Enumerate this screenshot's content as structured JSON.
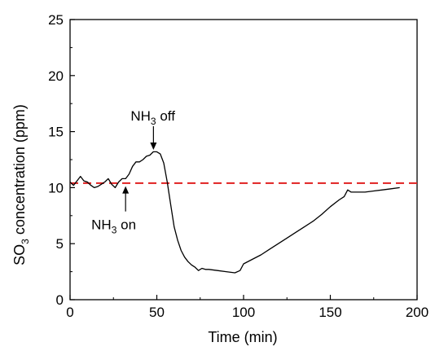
{
  "chart_data": {
    "type": "line",
    "xlabel": "Time (min)",
    "ylabel_parts": [
      "SO",
      "3",
      " concentration (ppm)"
    ],
    "xlim": [
      0,
      200
    ],
    "ylim": [
      0,
      25
    ],
    "x_ticks": [
      0,
      50,
      100,
      150,
      200
    ],
    "y_ticks": [
      0,
      5,
      10,
      15,
      20,
      25
    ],
    "grid": false,
    "colors": {
      "series": "#000000",
      "reference": "#e02020"
    },
    "reference_line": {
      "y": 10.4,
      "style": "dashed"
    },
    "series": [
      {
        "x": [
          0,
          2,
          4,
          6,
          8,
          10,
          12,
          14,
          16,
          18,
          20,
          22,
          24,
          26,
          28,
          30,
          32,
          34,
          36,
          38,
          40,
          42,
          44,
          46,
          48,
          50,
          52,
          54,
          56,
          58,
          60,
          62,
          64,
          66,
          68,
          70,
          72,
          74,
          76,
          78,
          80,
          85,
          90,
          95,
          98,
          100,
          105,
          110,
          115,
          120,
          125,
          130,
          135,
          140,
          145,
          150,
          155,
          158,
          160,
          162,
          165,
          170,
          175,
          180,
          185,
          190
        ],
        "y": [
          10.5,
          10.2,
          10.6,
          11.0,
          10.6,
          10.5,
          10.2,
          10.0,
          10.1,
          10.3,
          10.5,
          10.8,
          10.3,
          10.0,
          10.5,
          10.8,
          10.8,
          11.2,
          11.9,
          12.3,
          12.3,
          12.5,
          12.8,
          12.9,
          13.2,
          13.2,
          13.0,
          12.2,
          10.5,
          8.5,
          6.5,
          5.3,
          4.4,
          3.8,
          3.4,
          3.1,
          2.9,
          2.6,
          2.8,
          2.7,
          2.7,
          2.6,
          2.5,
          2.4,
          2.6,
          3.2,
          3.6,
          4.0,
          4.5,
          5.0,
          5.5,
          6.0,
          6.5,
          7.0,
          7.6,
          8.3,
          8.9,
          9.2,
          9.8,
          9.6,
          9.6,
          9.6,
          9.7,
          9.8,
          9.9,
          10.0
        ]
      }
    ],
    "annotations": [
      {
        "main": "NH",
        "sub": "3",
        "rest": " on",
        "x": 32,
        "y": 10.2
      },
      {
        "main": "NH",
        "sub": "3",
        "rest": " off",
        "x": 49,
        "y": 13.3
      }
    ]
  }
}
